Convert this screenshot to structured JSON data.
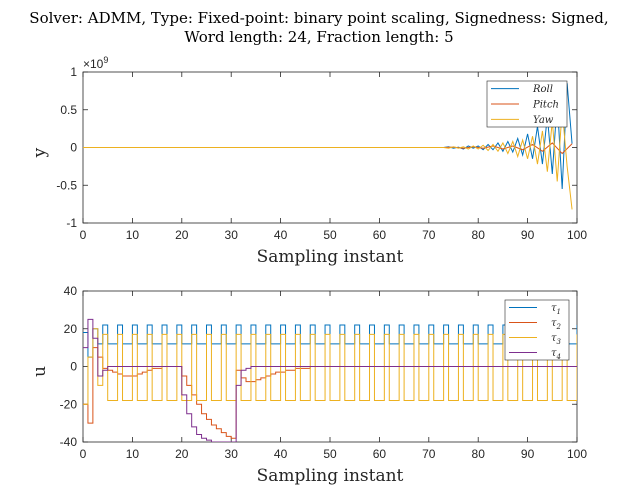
{
  "title": {
    "line1": "Solver: ADMM, Type: Fixed-point: binary point scaling, Signedness: Signed,",
    "line2": "Word length: 24, Fraction length: 5"
  },
  "chart_data": [
    {
      "type": "line",
      "xlabel": "Sampling instant",
      "ylabel": "y",
      "exponent_label": "×10",
      "exponent_power": "9",
      "xlim": [
        0,
        100
      ],
      "ylim": [
        -1,
        1
      ],
      "xticks": [
        "0",
        "10",
        "20",
        "30",
        "40",
        "50",
        "60",
        "70",
        "80",
        "90",
        "100"
      ],
      "yticks": [
        "1",
        "0.5",
        "0",
        "-0.5",
        "-1"
      ],
      "ytick_values": [
        1,
        0.5,
        0,
        -0.5,
        -1
      ],
      "legend_position": "top-right",
      "grid": false,
      "series": [
        {
          "name": "Roll",
          "color": "#0072BD",
          "x": [
            0,
            73,
            74,
            75,
            76,
            77,
            78,
            79,
            80,
            81,
            82,
            83,
            84,
            85,
            86,
            87,
            88,
            89,
            90,
            91,
            92,
            93,
            94,
            95,
            96,
            97,
            98,
            99
          ],
          "y": [
            0,
            0,
            0.01,
            -0.01,
            0.005,
            -0.02,
            0.02,
            -0.01,
            0.02,
            -0.03,
            0.04,
            -0.03,
            0.06,
            -0.05,
            0.08,
            -0.06,
            0.12,
            -0.1,
            0.18,
            -0.15,
            0.28,
            -0.22,
            0.42,
            -0.35,
            0.62,
            -0.55,
            0.85,
            0.05
          ]
        },
        {
          "name": "Pitch",
          "color": "#D95319",
          "x": [
            0,
            73,
            75,
            77,
            79,
            81,
            83,
            85,
            87,
            89,
            91,
            93,
            95,
            97,
            99
          ],
          "y": [
            0,
            0,
            0.005,
            -0.01,
            0.01,
            -0.01,
            0.02,
            -0.02,
            0.02,
            -0.03,
            0.04,
            -0.05,
            0.06,
            -0.08,
            0.05
          ]
        },
        {
          "name": "Yaw",
          "color": "#EDB120",
          "x": [
            0,
            73,
            74,
            75,
            76,
            77,
            78,
            79,
            80,
            81,
            82,
            83,
            84,
            85,
            86,
            87,
            88,
            89,
            90,
            91,
            92,
            93,
            94,
            95,
            96,
            97,
            98,
            99
          ],
          "y": [
            0,
            0,
            -0.01,
            0.01,
            -0.01,
            0.01,
            -0.02,
            0.02,
            -0.02,
            0.03,
            -0.04,
            0.04,
            -0.05,
            0.06,
            -0.08,
            0.08,
            -0.12,
            0.1,
            -0.15,
            0.15,
            -0.22,
            0.22,
            -0.32,
            0.35,
            -0.45,
            0.5,
            -0.25,
            -0.82
          ]
        }
      ]
    },
    {
      "type": "line",
      "xlabel": "Sampling instant",
      "ylabel": "u",
      "xlim": [
        0,
        100
      ],
      "ylim": [
        -40,
        40
      ],
      "xticks": [
        "0",
        "10",
        "20",
        "30",
        "40",
        "50",
        "60",
        "70",
        "80",
        "90",
        "100"
      ],
      "yticks": [
        "40",
        "20",
        "0",
        "-20",
        "-40"
      ],
      "ytick_values": [
        40,
        20,
        0,
        -20,
        -40
      ],
      "legend_position": "top-right",
      "grid": false,
      "series": [
        {
          "name": "τ1",
          "legend_base": "τ",
          "legend_sub": "1",
          "color": "#0072BD",
          "pattern": "square",
          "pattern_period": 3,
          "pattern_high": [
            0
          ],
          "pattern_low_count": 2,
          "high": 22,
          "low": 12,
          "start": 0,
          "end": 100,
          "initial": [
            [
              0,
              18
            ],
            [
              1,
              5
            ],
            [
              2,
              20
            ],
            [
              3,
              12
            ]
          ]
        },
        {
          "name": "τ2",
          "legend_base": "τ",
          "legend_sub": "2",
          "color": "#D95319",
          "x": [
            0,
            1,
            2,
            3,
            4,
            5,
            6,
            7,
            8,
            9,
            10,
            11,
            12,
            13,
            14,
            15,
            16,
            17,
            18,
            19,
            20,
            21,
            22,
            23,
            24,
            25,
            26,
            27,
            28,
            29,
            30,
            31,
            32,
            33,
            34,
            35,
            36,
            37,
            38,
            39,
            40,
            41,
            42,
            43,
            44,
            45,
            46,
            47,
            48,
            49,
            50,
            55,
            60,
            65,
            70,
            75,
            80,
            85,
            90,
            95,
            100
          ],
          "y": [
            -20,
            -30,
            10,
            5,
            -1,
            -2,
            -3,
            -4,
            -5,
            -5,
            -5,
            -4,
            -3,
            -2,
            -1,
            -1,
            0,
            0,
            0,
            0,
            -5,
            -10,
            -15,
            -20,
            -25,
            -28,
            -31,
            -33,
            -35,
            -37,
            -38,
            -2,
            -6,
            -8,
            -8,
            -7,
            -6,
            -5,
            -4,
            -3,
            -3,
            -2,
            -2,
            -1,
            -1,
            -1,
            0,
            0,
            0,
            0,
            0,
            0,
            0,
            0,
            0,
            0,
            0,
            0,
            0,
            0,
            0
          ]
        },
        {
          "name": "τ3",
          "legend_base": "τ",
          "legend_sub": "3",
          "color": "#EDB120",
          "pattern": "square",
          "pattern_period": 3,
          "high": 17,
          "low": -18,
          "start": 0,
          "end": 100,
          "initial": [
            [
              0,
              -20
            ],
            [
              1,
              5
            ],
            [
              2,
              20
            ],
            [
              3,
              -10
            ]
          ]
        },
        {
          "name": "τ4",
          "legend_base": "τ",
          "legend_sub": "4",
          "color": "#7E2F8E",
          "x": [
            0,
            1,
            2,
            3,
            4,
            5,
            6,
            7,
            8,
            9,
            10,
            11,
            12,
            13,
            14,
            15,
            16,
            17,
            18,
            19,
            20,
            21,
            22,
            23,
            24,
            25,
            26,
            27,
            28,
            29,
            30,
            31,
            32,
            33,
            34,
            35,
            36,
            37,
            38,
            39,
            40,
            45,
            50,
            60,
            70,
            80,
            90,
            100
          ],
          "y": [
            10,
            25,
            15,
            -5,
            -2,
            0,
            0,
            0,
            0,
            0,
            0,
            0,
            0,
            0,
            0,
            0,
            0,
            0,
            0,
            0,
            -15,
            -25,
            -32,
            -36,
            -38,
            -39,
            -40,
            -40,
            -40,
            -40,
            -40,
            -10,
            -2,
            -1,
            0,
            0,
            0,
            0,
            0,
            0,
            0,
            0,
            0,
            0,
            0,
            0,
            0,
            0
          ]
        }
      ]
    }
  ],
  "colors": {
    "axis": "#262626",
    "background": "#ffffff"
  }
}
